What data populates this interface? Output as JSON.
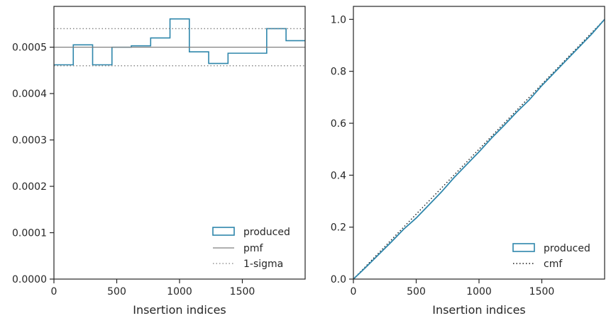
{
  "colors": {
    "produced": "#2e86ab",
    "pmf": "#808080",
    "sigma": "#808080",
    "cmf": "#1a1a1a",
    "axes": "#262626"
  },
  "chart_data": [
    {
      "type": "step",
      "xlabel": "Insertion indices",
      "ylabel": "",
      "title": "",
      "xlim": [
        0,
        2000
      ],
      "ylim": [
        0,
        0.000588
      ],
      "x_ticks": [
        0,
        500,
        1000,
        1500
      ],
      "x_tick_labels": [
        "0",
        "500",
        "1000",
        "1500"
      ],
      "y_ticks": [
        0,
        0.0001,
        0.0002,
        0.0003,
        0.0004,
        0.0005
      ],
      "y_tick_labels": [
        "0.0000",
        "0.0001",
        "0.0002",
        "0.0003",
        "0.0004",
        "0.0005"
      ],
      "series": [
        {
          "name": "produced",
          "kind": "step-histogram",
          "bin_edges": [
            0,
            154,
            308,
            462,
            616,
            770,
            924,
            1078,
            1232,
            1386,
            1540,
            1694,
            1848,
            2000
          ],
          "values": [
            0.000462,
            0.000505,
            0.000462,
            0.0005,
            0.000503,
            0.00052,
            0.000561,
            0.00049,
            0.000465,
            0.000487,
            0.000487,
            0.00054,
            0.000514
          ]
        },
        {
          "name": "pmf",
          "kind": "hline",
          "y": 0.0005
        },
        {
          "name": "1-sigma",
          "kind": "hline-dotted",
          "y": [
            0.00046,
            0.00054
          ]
        }
      ],
      "legend": {
        "position": "lower-right",
        "entries": [
          "produced",
          "pmf",
          "1-sigma"
        ]
      }
    },
    {
      "type": "line",
      "xlabel": "Insertion indices",
      "ylabel": "",
      "title": "",
      "xlim": [
        0,
        2000
      ],
      "ylim": [
        0,
        1.05
      ],
      "x_ticks": [
        0,
        500,
        1000,
        1500
      ],
      "x_tick_labels": [
        "0",
        "500",
        "1000",
        "1500"
      ],
      "y_ticks": [
        0,
        0.2,
        0.4,
        0.6,
        0.8,
        1.0
      ],
      "y_tick_labels": [
        "0.0",
        "0.2",
        "0.4",
        "0.6",
        "0.8",
        "1.0"
      ],
      "series": [
        {
          "name": "produced",
          "kind": "step-cumulative",
          "x": [
            0,
            100,
            200,
            300,
            400,
            500,
            600,
            700,
            800,
            900,
            1000,
            1100,
            1200,
            1300,
            1400,
            1500,
            1600,
            1700,
            1800,
            1900,
            2000
          ],
          "y": [
            0,
            0.046,
            0.094,
            0.142,
            0.192,
            0.235,
            0.285,
            0.335,
            0.39,
            0.44,
            0.49,
            0.543,
            0.592,
            0.643,
            0.69,
            0.745,
            0.795,
            0.845,
            0.895,
            0.945,
            1.0
          ]
        },
        {
          "name": "cmf",
          "kind": "line-dotted",
          "x": [
            0,
            2000
          ],
          "y": [
            0,
            1.0
          ]
        }
      ],
      "legend": {
        "position": "lower-right",
        "entries": [
          "produced",
          "cmf"
        ]
      }
    }
  ]
}
